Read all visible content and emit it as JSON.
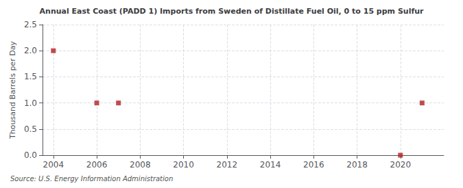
{
  "chart_data": {
    "type": "scatter",
    "title": "Annual East Coast (PADD 1) Imports from Sweden of Distillate Fuel Oil, 0 to 15 ppm Sulfur",
    "ylabel": "Thousand Barrels per Day",
    "source": "Source: U.S. Energy Information Administration",
    "x": [
      2004,
      2006,
      2007,
      2020,
      2021
    ],
    "values": [
      2.0,
      1.0,
      1.0,
      0.0,
      1.0
    ],
    "color": "#b22222",
    "marker": "square",
    "xlim": [
      2003.5,
      2022
    ],
    "xticks": [
      2004,
      2006,
      2008,
      2010,
      2012,
      2014,
      2016,
      2018,
      2020
    ],
    "ylim": [
      0.0,
      2.5
    ],
    "yticks": [
      {
        "value": 0.0,
        "label": "0.0"
      },
      0.5,
      {
        "value": 1.0,
        "label": "1.0"
      },
      1.5,
      {
        "value": 2.0,
        "label": "2.0"
      },
      2.5
    ],
    "grid": true
  }
}
